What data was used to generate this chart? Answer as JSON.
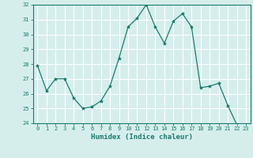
{
  "x": [
    0,
    1,
    2,
    3,
    4,
    5,
    6,
    7,
    8,
    9,
    10,
    11,
    12,
    13,
    14,
    15,
    16,
    17,
    18,
    19,
    20,
    21,
    22,
    23
  ],
  "y": [
    27.9,
    26.2,
    27.0,
    27.0,
    25.7,
    25.0,
    25.1,
    25.5,
    26.5,
    28.4,
    30.5,
    31.1,
    32.0,
    30.5,
    29.4,
    30.9,
    31.4,
    30.5,
    26.4,
    26.5,
    26.7,
    25.2,
    23.9,
    23.8
  ],
  "line_color": "#1a7a6e",
  "marker": "*",
  "marker_size": 3,
  "bg_color": "#d5eeec",
  "grid_color": "#ffffff",
  "xlabel": "Humidex (Indice chaleur)",
  "ylim": [
    24,
    32
  ],
  "yticks": [
    24,
    25,
    26,
    27,
    28,
    29,
    30,
    31,
    32
  ],
  "xticks": [
    0,
    1,
    2,
    3,
    4,
    5,
    6,
    7,
    8,
    9,
    10,
    11,
    12,
    13,
    14,
    15,
    16,
    17,
    18,
    19,
    20,
    21,
    22,
    23
  ],
  "tick_color": "#1a7a6e",
  "axis_color": "#1a7a6e",
  "tick_fontsize": 5,
  "xlabel_fontsize": 6.5
}
